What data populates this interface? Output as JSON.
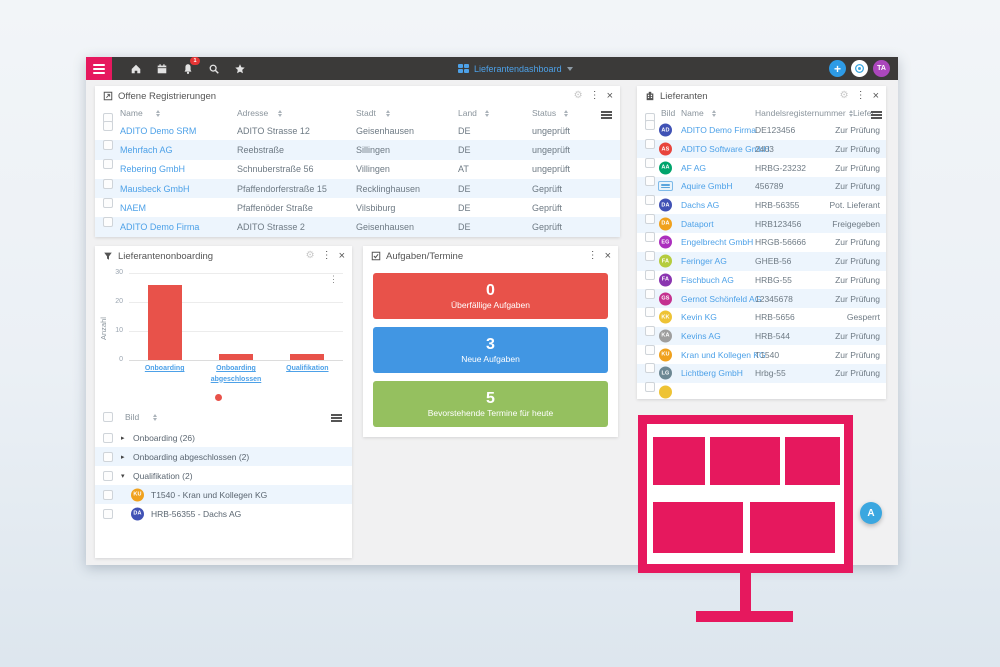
{
  "colors": {
    "brand_pink": "#e6185e",
    "link_blue": "#4da1e8",
    "row_alt": "#edf5fd",
    "card_red": "#e8524a",
    "card_blue": "#4196e3",
    "card_green": "#95c05f",
    "navbar_bg": "#3b3a39"
  },
  "navbar": {
    "title": "Lieferantendashboard",
    "notification_count": "1",
    "avatar_initials": "TA",
    "add_label": "+"
  },
  "panels": {
    "registrations": {
      "title": "Offene Registrierungen",
      "columns": [
        "Name",
        "Adresse",
        "Stadt",
        "Land",
        "Status"
      ],
      "rows": [
        {
          "name": "ADITO Demo SRM",
          "adresse": "ADITO Strasse 12",
          "stadt": "Geisenhausen",
          "land": "DE",
          "status": "ungeprüft"
        },
        {
          "name": "Mehrfach AG",
          "adresse": "Reebstraße",
          "stadt": "Sillingen",
          "land": "DE",
          "status": "ungeprüft"
        },
        {
          "name": "Rebering GmbH",
          "adresse": "Schnuberstraße 56",
          "stadt": "Villingen",
          "land": "AT",
          "status": "ungeprüft"
        },
        {
          "name": "Mausbeck GmbH",
          "adresse": "Pfaffendorferstraße 15",
          "stadt": "Recklinghausen",
          "land": "DE",
          "status": "Geprüft"
        },
        {
          "name": "NAEM",
          "adresse": "Pfaffenöder Straße",
          "stadt": "Vilsbiburg",
          "land": "DE",
          "status": "Geprüft"
        },
        {
          "name": "ADITO Demo Firma",
          "adresse": "ADITO Strasse 2",
          "stadt": "Geisenhausen",
          "land": "DE",
          "status": "Geprüft"
        }
      ]
    },
    "suppliers": {
      "title": "Lieferanten",
      "columns": [
        "Bild",
        "Name",
        "Handelsregisternummer",
        "Liefer..."
      ],
      "rows": [
        {
          "initials": "AD",
          "color": "#4052b5",
          "name": "ADITO Demo Firma",
          "number": "DE123456",
          "status": "Zur Prüfung"
        },
        {
          "initials": "AS",
          "color": "#e8443c",
          "name": "ADITO Software GmbH",
          "number": "2403",
          "status": "Zur Prüfung"
        },
        {
          "initials": "AA",
          "color": "#00a46c",
          "name": "AF AG",
          "number": "HRBG-23232",
          "status": "Zur Prüfung"
        },
        {
          "initials": "",
          "color": "logo",
          "name": "Aquire GmbH",
          "number": "456789",
          "status": "Zur Prüfung"
        },
        {
          "initials": "DA",
          "color": "#4052b5",
          "name": "Dachs AG",
          "number": "HRB-56355",
          "status": "Pot. Lieferant"
        },
        {
          "initials": "DA",
          "color": "#f0a11d",
          "name": "Dataport",
          "number": "HRB123456",
          "status": "Freigegeben"
        },
        {
          "initials": "EG",
          "color": "#ab2fbd",
          "name": "Engelbrecht GmbH",
          "number": "HRGB-56666",
          "status": "Zur Prüfung"
        },
        {
          "initials": "FA",
          "color": "#b5cc3e",
          "name": "Feringer AG",
          "number": "GHEB-56",
          "status": "Zur Prüfung"
        },
        {
          "initials": "FA",
          "color": "#8a35b0",
          "name": "Fischbuch AG",
          "number": "HRBG-55",
          "status": "Zur Prüfung"
        },
        {
          "initials": "GS",
          "color": "#c4318f",
          "name": "Gernot Schönfeld AG",
          "number": "12345678",
          "status": "Zur Prüfung"
        },
        {
          "initials": "KK",
          "color": "#eec335",
          "name": "Kevin KG",
          "number": "HRB-5656",
          "status": "Gesperrt"
        },
        {
          "initials": "KA",
          "color": "#9e9e9e",
          "name": "Kevins AG",
          "number": "HRB-544",
          "status": "Zur Prüfung"
        },
        {
          "initials": "KU",
          "color": "#f0a11d",
          "name": "Kran und Kollegen KG",
          "number": "T1540",
          "status": "Zur Prüfung"
        },
        {
          "initials": "LG",
          "color": "#6c8793",
          "name": "Lichtberg GmbH",
          "number": "Hrbg-55",
          "status": "Zur Prüfung"
        },
        {
          "initials": "",
          "color": "#eec335",
          "name": "",
          "number": "",
          "status": ""
        }
      ]
    },
    "onboarding": {
      "title": "Lieferantenonboarding",
      "chart_data": {
        "type": "bar",
        "categories": [
          "Onboarding",
          "Onboarding abgeschlossen",
          "Qualifikation"
        ],
        "values": [
          26,
          2,
          2
        ],
        "title": "",
        "xlabel": "",
        "ylabel": "Anzahl",
        "yticks": [
          0,
          10,
          20,
          30
        ],
        "ylim": [
          0,
          30
        ],
        "bar_color": "#e8524a",
        "grid": true,
        "legend_dot_color": "#e8524a"
      },
      "tree_header": "Bild",
      "tree": [
        {
          "label": "Onboarding (26)",
          "expanded": false
        },
        {
          "label": "Onboarding abgeschlossen (2)",
          "expanded": false
        },
        {
          "label": "Qualifikation (2)",
          "expanded": true
        },
        {
          "label": "T1540 - Kran und Kollegen KG",
          "child": true,
          "initials": "KU",
          "color": "#f0a11d"
        },
        {
          "label": "HRB-56355 - Dachs AG",
          "child": true,
          "initials": "DA",
          "color": "#4052b5"
        }
      ]
    },
    "tasks": {
      "title": "Aufgaben/Termine",
      "cards": [
        {
          "value": "0",
          "label": "Überfällige Aufgaben",
          "color": "#e8524a"
        },
        {
          "value": "3",
          "label": "Neue Aufgaben",
          "color": "#4196e3"
        },
        {
          "value": "5",
          "label": "Bevorstehende Termine für heute",
          "color": "#95c05f"
        }
      ]
    }
  },
  "assistant": {
    "label": "A"
  }
}
